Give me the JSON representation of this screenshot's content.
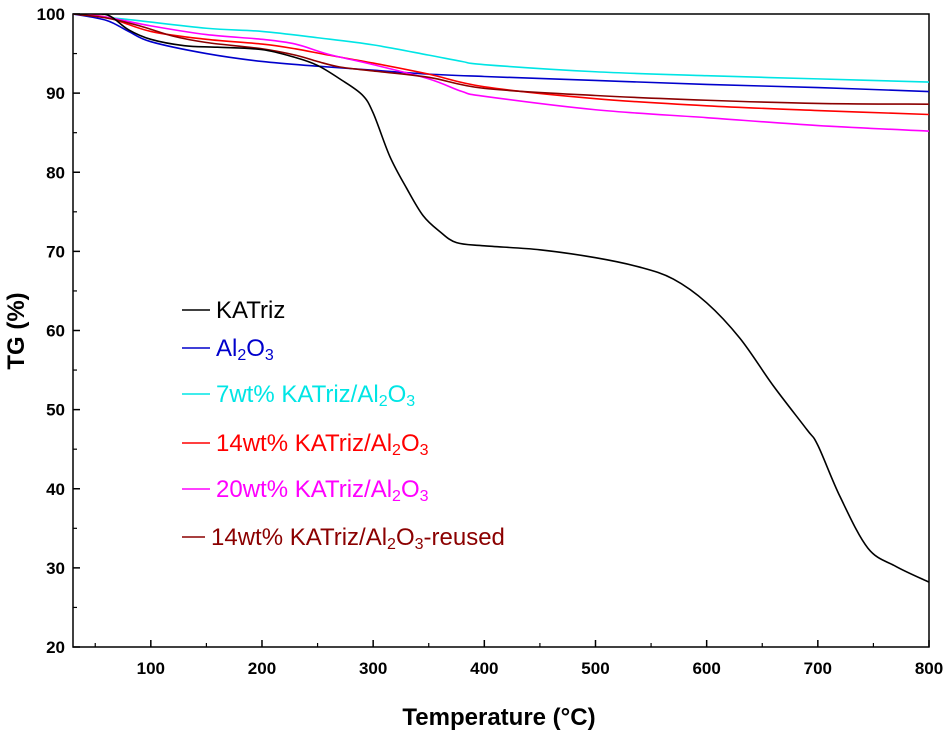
{
  "chart_data": {
    "type": "line",
    "title": "",
    "xlabel": "Temperature (°C)",
    "ylabel": "TG (%)",
    "xlim": [
      30,
      800
    ],
    "ylim": [
      20,
      100
    ],
    "xticks": [
      100,
      200,
      300,
      400,
      500,
      600,
      700,
      800
    ],
    "yticks": [
      20,
      30,
      40,
      50,
      60,
      70,
      80,
      90,
      100
    ],
    "legend_position": "center-left",
    "series": [
      {
        "name": "KATriz",
        "legend_parts": [
          {
            "t": "KATriz"
          }
        ],
        "color": "#000000",
        "points": [
          [
            30,
            100
          ],
          [
            55,
            100
          ],
          [
            65,
            99.6
          ],
          [
            80,
            98
          ],
          [
            100,
            96.8
          ],
          [
            130,
            96
          ],
          [
            160,
            95.8
          ],
          [
            200,
            95.5
          ],
          [
            230,
            94.5
          ],
          [
            250,
            93.5
          ],
          [
            270,
            91.8
          ],
          [
            290,
            89.8
          ],
          [
            300,
            87.5
          ],
          [
            315,
            82
          ],
          [
            330,
            78
          ],
          [
            345,
            74.5
          ],
          [
            360,
            72.5
          ],
          [
            375,
            71.1
          ],
          [
            400,
            70.7
          ],
          [
            450,
            70.2
          ],
          [
            500,
            69.2
          ],
          [
            540,
            68
          ],
          [
            570,
            66.5
          ],
          [
            600,
            63.5
          ],
          [
            630,
            59
          ],
          [
            660,
            53
          ],
          [
            690,
            47.5
          ],
          [
            700,
            45.5
          ],
          [
            720,
            39
          ],
          [
            745,
            32.5
          ],
          [
            770,
            30.2
          ],
          [
            800,
            28.2
          ]
        ]
      },
      {
        "name": "Al2O3",
        "legend_parts": [
          {
            "t": "Al"
          },
          {
            "t": "2",
            "sub": true
          },
          {
            "t": "O"
          },
          {
            "t": "3",
            "sub": true
          }
        ],
        "color": "#0000cc",
        "points": [
          [
            30,
            100
          ],
          [
            60,
            99.2
          ],
          [
            80,
            97.8
          ],
          [
            100,
            96.5
          ],
          [
            150,
            95
          ],
          [
            200,
            94
          ],
          [
            250,
            93.4
          ],
          [
            300,
            92.9
          ],
          [
            350,
            92.4
          ],
          [
            400,
            92.1
          ],
          [
            500,
            91.6
          ],
          [
            600,
            91.1
          ],
          [
            700,
            90.7
          ],
          [
            800,
            90.2
          ]
        ]
      },
      {
        "name": "7wt% KATriz/Al2O3",
        "legend_parts": [
          {
            "t": "7wt% KATriz/Al"
          },
          {
            "t": "2",
            "sub": true
          },
          {
            "t": "O"
          },
          {
            "t": "3",
            "sub": true
          }
        ],
        "color": "#00e5e5",
        "points": [
          [
            30,
            100
          ],
          [
            80,
            99.3
          ],
          [
            150,
            98.2
          ],
          [
            200,
            97.8
          ],
          [
            250,
            97
          ],
          [
            300,
            96.1
          ],
          [
            350,
            94.8
          ],
          [
            380,
            94
          ],
          [
            400,
            93.6
          ],
          [
            500,
            92.7
          ],
          [
            600,
            92.2
          ],
          [
            700,
            91.8
          ],
          [
            800,
            91.4
          ]
        ]
      },
      {
        "name": "14wt% KATriz/Al2O3",
        "legend_parts": [
          {
            "t": "14wt% KATriz/Al"
          },
          {
            "t": "2",
            "sub": true
          },
          {
            "t": "O"
          },
          {
            "t": "3",
            "sub": true
          }
        ],
        "color": "#ff0000",
        "points": [
          [
            30,
            100
          ],
          [
            60,
            99.6
          ],
          [
            100,
            97.8
          ],
          [
            150,
            96.8
          ],
          [
            200,
            96.2
          ],
          [
            230,
            95.6
          ],
          [
            260,
            94.8
          ],
          [
            300,
            93.8
          ],
          [
            350,
            92.4
          ],
          [
            400,
            90.8
          ],
          [
            500,
            89.3
          ],
          [
            600,
            88.4
          ],
          [
            700,
            87.8
          ],
          [
            800,
            87.3
          ]
        ]
      },
      {
        "name": "20wt% KATriz/Al2O3",
        "legend_parts": [
          {
            "t": "20wt% KATriz/Al"
          },
          {
            "t": "2",
            "sub": true
          },
          {
            "t": "O"
          },
          {
            "t": "3",
            "sub": true
          }
        ],
        "color": "#ff00ff",
        "points": [
          [
            30,
            100
          ],
          [
            60,
            99.6
          ],
          [
            100,
            98.5
          ],
          [
            150,
            97.4
          ],
          [
            200,
            96.8
          ],
          [
            230,
            96.2
          ],
          [
            260,
            94.9
          ],
          [
            300,
            93.6
          ],
          [
            350,
            91.8
          ],
          [
            380,
            90.2
          ],
          [
            400,
            89.6
          ],
          [
            500,
            87.9
          ],
          [
            600,
            86.9
          ],
          [
            700,
            85.9
          ],
          [
            800,
            85.2
          ]
        ]
      },
      {
        "name": "14wt% KATriz/Al2O3-reused",
        "legend_parts": [
          {
            "t": "14wt% KATriz/Al"
          },
          {
            "t": "2",
            "sub": true
          },
          {
            "t": "O"
          },
          {
            "t": "3",
            "sub": true
          },
          {
            "t": "-reused"
          }
        ],
        "color": "#8b0000",
        "points": [
          [
            30,
            100
          ],
          [
            60,
            99.5
          ],
          [
            90,
            98.5
          ],
          [
            120,
            97.2
          ],
          [
            150,
            96.4
          ],
          [
            200,
            95.6
          ],
          [
            230,
            94.8
          ],
          [
            250,
            94
          ],
          [
            270,
            93.3
          ],
          [
            300,
            92.8
          ],
          [
            350,
            92
          ],
          [
            400,
            90.6
          ],
          [
            500,
            89.7
          ],
          [
            600,
            89.1
          ],
          [
            700,
            88.7
          ],
          [
            800,
            88.6
          ]
        ]
      }
    ]
  }
}
